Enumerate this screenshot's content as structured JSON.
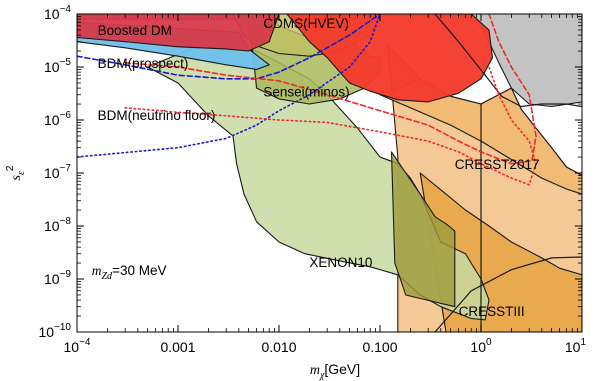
{
  "chart_data": {
    "type": "exclusion-plot",
    "xlabel": {
      "symbol": "m",
      "subscript": "χ",
      "unit": "[GeV]"
    },
    "ylabel": {
      "symbol": "s",
      "subscript": "ε",
      "power": "2"
    },
    "x_scale": "log",
    "y_scale": "log",
    "xlim": [
      0.0001,
      10
    ],
    "ylim": [
      1e-10,
      0.0001
    ],
    "x_ticks": [
      {
        "value": 0.0001,
        "mantissa": "10",
        "exp": "−4"
      },
      {
        "value": 0.001,
        "text": "0.001"
      },
      {
        "value": 0.01,
        "text": "0.010"
      },
      {
        "value": 0.1,
        "text": "0.100"
      },
      {
        "value": 1,
        "mantissa": "10",
        "exp": "0"
      },
      {
        "value": 10,
        "mantissa": "10",
        "exp": "1"
      }
    ],
    "y_ticks": [
      {
        "value": 1e-10,
        "mantissa": "10",
        "exp": "−10"
      },
      {
        "value": 1e-09,
        "mantissa": "10",
        "exp": "−9"
      },
      {
        "value": 1e-08,
        "mantissa": "10",
        "exp": "−8"
      },
      {
        "value": 1e-07,
        "mantissa": "10",
        "exp": "−7"
      },
      {
        "value": 1e-06,
        "mantissa": "10",
        "exp": "−6"
      },
      {
        "value": 1e-05,
        "mantissa": "10",
        "exp": "−5"
      },
      {
        "value": 0.0001,
        "mantissa": "10",
        "exp": "−4"
      }
    ],
    "annotation": {
      "symbol": "m",
      "subscript": "Zd",
      "value": "=30 MeV",
      "x": 0.00014,
      "y": 1.2e-09
    },
    "regions": [
      {
        "name": "gray-upper-right",
        "color": "#bdbdbd",
        "opacity": 0.9,
        "points": [
          [
            0.35,
            0.0001
          ],
          [
            10,
            0.0001
          ],
          [
            10,
            2.2e-06
          ],
          [
            5,
            1.8e-06
          ],
          [
            3,
            2e-06
          ],
          [
            2,
            4e-06
          ],
          [
            1.5,
            1.2e-05
          ],
          [
            1.2,
            3e-05
          ],
          [
            1,
            6e-05
          ],
          [
            0.6,
            0.0001
          ]
        ]
      },
      {
        "name": "gray-left-band",
        "color": "#bdbdbd",
        "opacity": 0.9,
        "points": [
          [
            0.0001,
            0.0001
          ],
          [
            0.004,
            0.0001
          ],
          [
            0.004,
            8e-05
          ],
          [
            0.0001,
            8e-05
          ]
        ]
      },
      {
        "name": "cresst2017-region",
        "color": "#f4c68f",
        "opacity": 0.95,
        "points": [
          [
            0.12,
            2.5e-05
          ],
          [
            0.25,
            6e-06
          ],
          [
            0.5,
            2.8e-06
          ],
          [
            1,
            2e-06
          ],
          [
            1.5,
            3e-06
          ],
          [
            2,
            4e-06
          ],
          [
            2.5,
            1.6e-06
          ],
          [
            3.5,
            7e-07
          ],
          [
            5,
            3e-07
          ],
          [
            7,
            1.3e-07
          ],
          [
            10,
            9e-08
          ],
          [
            10,
            1e-10
          ],
          [
            0.15,
            1e-10
          ],
          [
            0.15,
            2e-07
          ]
        ]
      },
      {
        "name": "cressttiii-region",
        "color": "#e8a84a",
        "opacity": 0.95,
        "points": [
          [
            0.25,
            1e-07
          ],
          [
            0.45,
            4e-08
          ],
          [
            0.7,
            2e-08
          ],
          [
            1.2,
            1e-08
          ],
          [
            2,
            5e-09
          ],
          [
            4,
            2.5e-09
          ],
          [
            6,
            1.6e-09
          ],
          [
            10,
            1.2e-09
          ],
          [
            10,
            1e-10
          ],
          [
            0.45,
            1e-10
          ]
        ]
      },
      {
        "name": "mid-orange-region",
        "color": "#f0b870",
        "opacity": 0.85,
        "points": [
          [
            0.1,
            3e-06
          ],
          [
            0.5,
            8e-07
          ],
          [
            1,
            4e-07
          ],
          [
            2,
            1.8e-07
          ],
          [
            4,
            8e-08
          ],
          [
            7,
            5e-08
          ],
          [
            10,
            4e-08
          ],
          [
            10,
            9e-08
          ],
          [
            7,
            1.3e-07
          ],
          [
            5,
            3e-07
          ],
          [
            3.5,
            7e-07
          ],
          [
            2.5,
            1.6e-06
          ],
          [
            2,
            4e-06
          ],
          [
            1.5,
            3e-06
          ],
          [
            1,
            2e-06
          ],
          [
            0.5,
            2.8e-06
          ],
          [
            0.25,
            6e-06
          ]
        ]
      },
      {
        "name": "xenon10-region",
        "color": "#c7d9a0",
        "opacity": 0.85,
        "points": [
          [
            0.0005,
            1e-05
          ],
          [
            0.001,
            5e-06
          ],
          [
            0.002,
            1.2e-06
          ],
          [
            0.0035,
            5e-07
          ],
          [
            0.0038,
            1.5e-07
          ],
          [
            0.0045,
            4e-08
          ],
          [
            0.006,
            1.2e-08
          ],
          [
            0.01,
            5e-09
          ],
          [
            0.018,
            3e-09
          ],
          [
            0.04,
            2.2e-09
          ],
          [
            0.08,
            1.7e-09
          ],
          [
            0.15,
            1.2e-09
          ],
          [
            0.25,
            5e-10
          ],
          [
            0.4,
            3e-10
          ],
          [
            0.8,
            1.8e-10
          ],
          [
            1.1,
            1.7e-10
          ],
          [
            1.2,
            4e-10
          ],
          [
            1,
            1e-09
          ],
          [
            0.7,
            3e-09
          ],
          [
            0.4,
            5e-09
          ],
          [
            0.25,
            4e-08
          ],
          [
            0.2,
            8e-08
          ],
          [
            0.15,
            1.5e-07
          ],
          [
            0.1,
            2e-07
          ],
          [
            0.06,
            7e-07
          ],
          [
            0.03,
            3e-06
          ],
          [
            0.02,
            6e-06
          ],
          [
            0.012,
            1e-05
          ],
          [
            0.006,
            2e-05
          ],
          [
            0.002,
            3e-05
          ]
        ]
      },
      {
        "name": "sensei-region",
        "color": "#a9b95a",
        "opacity": 0.85,
        "points": [
          [
            0.005,
            0.0001
          ],
          [
            0.008,
            0.0001
          ],
          [
            0.01,
            6e-05
          ],
          [
            0.02,
            3.5e-05
          ],
          [
            0.05,
            3e-05
          ],
          [
            0.08,
            1.6e-05
          ],
          [
            0.1,
            1.5e-05
          ],
          [
            0.1,
            8e-06
          ],
          [
            0.07,
            4e-06
          ],
          [
            0.04,
            2.5e-06
          ],
          [
            0.02,
            2e-06
          ],
          [
            0.01,
            2.5e-06
          ],
          [
            0.006,
            4e-06
          ]
        ]
      },
      {
        "name": "cdms-region",
        "color": "#c0bf62",
        "opacity": 0.8,
        "points": [
          [
            0.0035,
            0.0001
          ],
          [
            0.1,
            0.0001
          ],
          [
            0.08,
            4e-05
          ],
          [
            0.04,
            2e-05
          ],
          [
            0.02,
            1.6e-05
          ],
          [
            0.01,
            1.8e-05
          ],
          [
            0.006,
            2.5e-05
          ],
          [
            0.0045,
            4e-05
          ]
        ]
      },
      {
        "name": "xenon10-inner-strip",
        "color": "#9d9b3c",
        "opacity": 0.8,
        "points": [
          [
            0.13,
            2.5e-07
          ],
          [
            0.18,
            1e-07
          ],
          [
            0.25,
            4e-08
          ],
          [
            0.35,
            1.5e-08
          ],
          [
            0.45,
            1.1e-08
          ],
          [
            0.55,
            8e-09
          ],
          [
            0.55,
            3e-10
          ],
          [
            0.18,
            5e-10
          ],
          [
            0.14,
            2e-09
          ]
        ]
      },
      {
        "name": "bdm-prospect-region",
        "color": "#6ec0ec",
        "opacity": 0.95,
        "points": [
          [
            0.0001,
            3e-05
          ],
          [
            0.0003,
            2.3e-05
          ],
          [
            0.001,
            1.6e-05
          ],
          [
            0.003,
            1.1e-05
          ],
          [
            0.006,
            9e-06
          ],
          [
            0.008,
            1.1e-05
          ],
          [
            0.005,
            2.2e-05
          ],
          [
            0.004,
            4.5e-05
          ],
          [
            0.0001,
            7e-05
          ],
          [
            0.0001,
            2e-05
          ]
        ]
      },
      {
        "name": "boosted-dm-region",
        "color": "#d63a4a",
        "opacity": 0.95,
        "points": [
          [
            0.0001,
            0.0001
          ],
          [
            0.01,
            0.0001
          ],
          [
            0.008,
            3e-05
          ],
          [
            0.005,
            2e-05
          ],
          [
            0.003,
            2.2e-05
          ],
          [
            0.001,
            2.4e-05
          ],
          [
            0.0003,
            3e-05
          ],
          [
            0.0001,
            3.6e-05
          ]
        ]
      },
      {
        "name": "bright-red-region",
        "color": "#f43a2c",
        "opacity": 0.96,
        "points": [
          [
            0.012,
            0.0001
          ],
          [
            0.8,
            0.0001
          ],
          [
            1.2,
            5e-05
          ],
          [
            1.3,
            1.5e-05
          ],
          [
            1,
            6e-06
          ],
          [
            0.6,
            3.2e-06
          ],
          [
            0.3,
            2.2e-06
          ],
          [
            0.15,
            2.4e-06
          ],
          [
            0.08,
            3.5e-06
          ],
          [
            0.05,
            5e-06
          ],
          [
            0.04,
            8e-06
          ],
          [
            0.03,
            1.5e-05
          ],
          [
            0.02,
            3e-05
          ]
        ]
      }
    ],
    "boundaries": [
      {
        "name": "cresst2017-vertical-edge",
        "points": [
          [
            1,
            1e-10
          ],
          [
            1,
            2e-06
          ]
        ]
      },
      {
        "name": "cressttiii-lower-curve",
        "points": [
          [
            0.35,
            1e-10
          ],
          [
            0.8,
            6e-10
          ],
          [
            2,
            1.5e-09
          ],
          [
            5,
            2.5e-09
          ],
          [
            10,
            2.6e-09
          ]
        ]
      },
      {
        "name": "grey-outline",
        "points": [
          [
            0.35,
            0.0001
          ],
          [
            0.6,
            3e-05
          ],
          [
            1.1,
            7e-06
          ],
          [
            1.6,
            2.8e-06
          ],
          [
            2.5,
            1.8e-06
          ],
          [
            4,
            2e-06
          ],
          [
            7,
            2e-06
          ],
          [
            10,
            1.8e-06
          ]
        ]
      }
    ],
    "dashed_curves": [
      {
        "name": "bdm-prospect-limit",
        "color": "#1a1acc",
        "style": "dashed",
        "points": [
          [
            0.0001,
            1.6e-05
          ],
          [
            0.0003,
            1.1e-05
          ],
          [
            0.001,
            7e-06
          ],
          [
            0.003,
            6e-06
          ],
          [
            0.006,
            6e-06
          ],
          [
            0.01,
            8e-06
          ],
          [
            0.02,
            1.5e-05
          ],
          [
            0.05,
            4e-05
          ],
          [
            0.1,
            0.0001
          ]
        ]
      },
      {
        "name": "bdm-neutrino-floor-limit",
        "color": "#1a1acc",
        "style": "dotted",
        "points": [
          [
            0.0001,
            2e-07
          ],
          [
            0.001,
            3e-07
          ],
          [
            0.003,
            4.5e-07
          ],
          [
            0.006,
            8e-07
          ],
          [
            0.01,
            1.5e-06
          ],
          [
            0.02,
            3e-06
          ],
          [
            0.05,
            1e-05
          ],
          [
            0.08,
            3e-05
          ],
          [
            0.1,
            0.0001
          ]
        ]
      },
      {
        "name": "red-dashed-projection",
        "color": "#ee2a2a",
        "style": "dashed",
        "points": [
          [
            0.0003,
            1.2e-05
          ],
          [
            0.001,
            1e-05
          ],
          [
            0.003,
            7e-06
          ],
          [
            0.01,
            5.5e-06
          ],
          [
            0.03,
            3e-06
          ],
          [
            0.1,
            1.5e-06
          ],
          [
            0.3,
            8e-07
          ],
          [
            0.6,
            4e-07
          ],
          [
            1,
            2.5e-07
          ],
          [
            2,
            1.5e-07
          ],
          [
            3.2,
            1.7e-07
          ],
          [
            3.5,
            5e-07
          ],
          [
            3,
            3e-06
          ],
          [
            2,
            1e-05
          ],
          [
            1.5,
            3e-05
          ],
          [
            1.2,
            0.0001
          ]
        ]
      },
      {
        "name": "red-dotted-projection",
        "color": "#ee2a2a",
        "style": "dotted",
        "points": [
          [
            0.0003,
            1.7e-06
          ],
          [
            0.001,
            1.4e-06
          ],
          [
            0.003,
            1.2e-06
          ],
          [
            0.01,
            1e-06
          ],
          [
            0.03,
            9e-07
          ],
          [
            0.1,
            6e-07
          ],
          [
            0.3,
            4e-07
          ],
          [
            0.6,
            2.5e-07
          ],
          [
            1,
            1.5e-07
          ],
          [
            2,
            8e-08
          ],
          [
            3,
            6e-08
          ],
          [
            3.5,
            1.5e-07
          ],
          [
            3,
            4e-07
          ],
          [
            2,
            1e-06
          ],
          [
            1.5,
            3e-06
          ],
          [
            1.2,
            1e-05
          ]
        ]
      }
    ],
    "labels": [
      {
        "text": "Boosted DM",
        "x": 0.00016,
        "y": 4e-05
      },
      {
        "text": "BDM(prospect)",
        "x": 0.00016,
        "y": 9.5e-06
      },
      {
        "text": "BDM(neutrino floor)",
        "x": 0.00016,
        "y": 1e-06
      },
      {
        "text": "CDMS(HVEV)",
        "x": 0.007,
        "y": 5.5e-05
      },
      {
        "text": "Sensei(minos)",
        "x": 0.007,
        "y": 2.8e-06
      },
      {
        "text": "CRESST2017",
        "x": 0.55,
        "y": 1.2e-07
      },
      {
        "text": "XENON10",
        "x": 0.02,
        "y": 1.7e-09
      },
      {
        "text": "CRESSTIII",
        "x": 0.6,
        "y": 2e-10
      }
    ]
  }
}
